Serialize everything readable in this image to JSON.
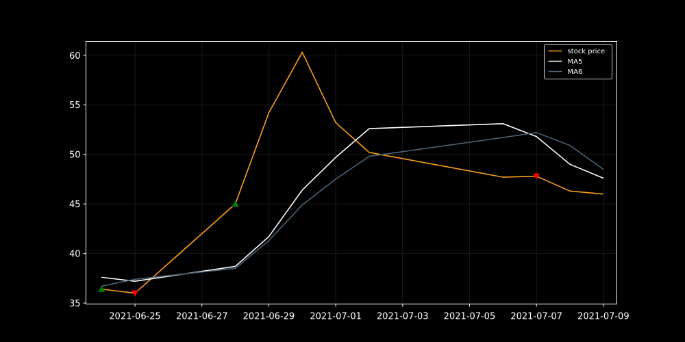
{
  "chart_data": {
    "type": "line",
    "title": "",
    "xlabel": "",
    "ylabel": "",
    "x": [
      "2021-06-24",
      "2021-06-25",
      "2021-06-28",
      "2021-06-29",
      "2021-06-30",
      "2021-07-01",
      "2021-07-02",
      "2021-07-06",
      "2021-07-07",
      "2021-07-08",
      "2021-07-09"
    ],
    "xlim": [
      "2021-06-23T12:50",
      "2021-07-09T09:40"
    ],
    "ylim": [
      34.9,
      61.4
    ],
    "x_ticks": [
      "2021-06-25",
      "2021-06-27",
      "2021-06-29",
      "2021-07-01",
      "2021-07-03",
      "2021-07-05",
      "2021-07-07",
      "2021-07-09"
    ],
    "y_ticks": [
      35,
      40,
      45,
      50,
      55,
      60
    ],
    "grid": true,
    "legend_position": "upper right",
    "series": [
      {
        "name": "stock price",
        "color": "#ff9f1a",
        "values": [
          36.4,
          36.0,
          45.0,
          54.2,
          60.3,
          53.2,
          50.2,
          47.7,
          47.8,
          46.3,
          46.0
        ]
      },
      {
        "name": "MA5",
        "color": "#ffffff",
        "values": [
          37.6,
          37.2,
          38.7,
          41.7,
          46.4,
          49.7,
          52.6,
          53.1,
          51.8,
          49.0,
          47.6
        ]
      },
      {
        "name": "MA6",
        "color": "#4a6478",
        "values": [
          36.7,
          37.4,
          38.5,
          41.3,
          44.9,
          47.5,
          49.8,
          51.7,
          52.2,
          50.9,
          48.5
        ]
      }
    ],
    "buy_signals": {
      "color": "#008000",
      "marker": "triangle-up",
      "points": [
        {
          "x": "2021-06-24",
          "y": 36.4
        },
        {
          "x": "2021-06-28",
          "y": 45.0
        }
      ]
    },
    "sell_signals": {
      "color": "#ff0000",
      "marker": "triangle-down",
      "points": [
        {
          "x": "2021-06-25",
          "y": 36.0
        },
        {
          "x": "2021-07-07",
          "y": 47.8
        }
      ]
    }
  }
}
